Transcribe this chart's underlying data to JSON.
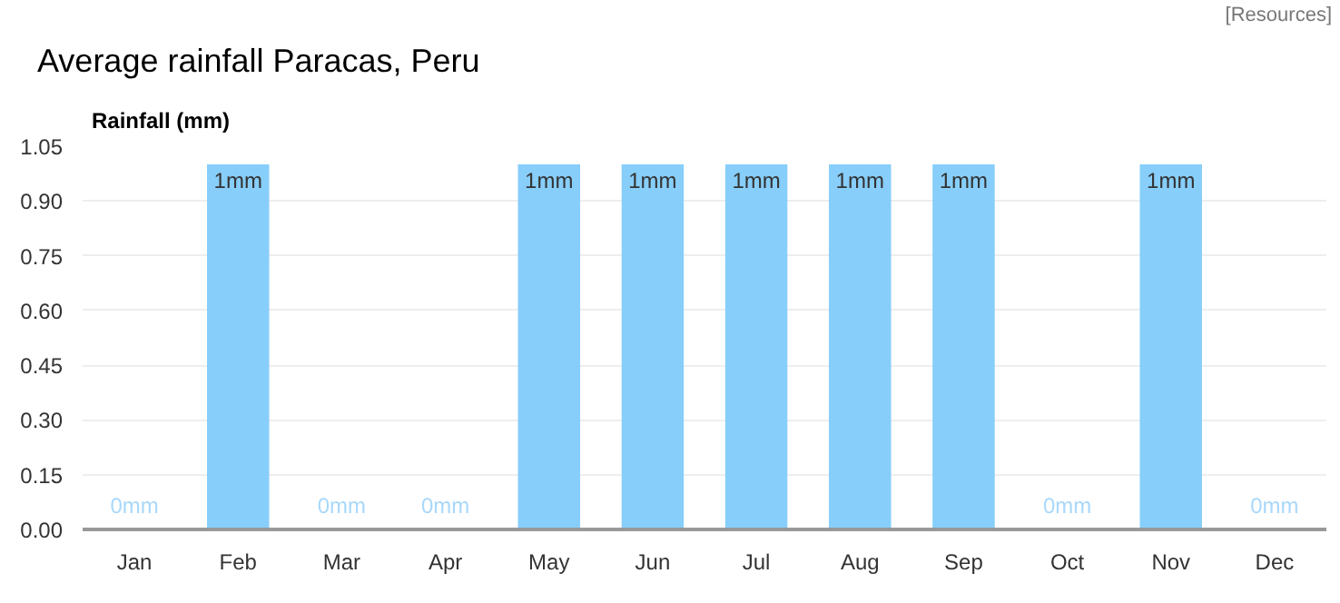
{
  "chart_data": {
    "type": "bar",
    "title": "Average rainfall Paracas, Peru",
    "ylabel": "Rainfall (mm)",
    "annotations": [
      "[Resources]"
    ],
    "categories": [
      "Jan",
      "Feb",
      "Mar",
      "Apr",
      "May",
      "Jun",
      "Jul",
      "Aug",
      "Sep",
      "Oct",
      "Nov",
      "Dec"
    ],
    "values": [
      0,
      1,
      0,
      0,
      1,
      1,
      1,
      1,
      1,
      0,
      1,
      0
    ],
    "value_labels": [
      "0mm",
      "1mm",
      "0mm",
      "0mm",
      "1mm",
      "1mm",
      "1mm",
      "1mm",
      "1mm",
      "0mm",
      "1mm",
      "0mm"
    ],
    "color": "#87cefa",
    "ylim": [
      0,
      1.05
    ],
    "yticks": [
      {
        "value": 0,
        "label": "0.00"
      },
      {
        "value": 0.15,
        "label": "0.15"
      },
      {
        "value": 0.3,
        "label": "0.30"
      },
      {
        "value": 0.45,
        "label": "0.45"
      },
      {
        "value": 0.6,
        "label": "0.60"
      },
      {
        "value": 0.75,
        "label": "0.75"
      },
      {
        "value": 0.9,
        "label": "0.90"
      },
      {
        "value": 1.05,
        "label": "1.05"
      }
    ],
    "grid": "y"
  }
}
